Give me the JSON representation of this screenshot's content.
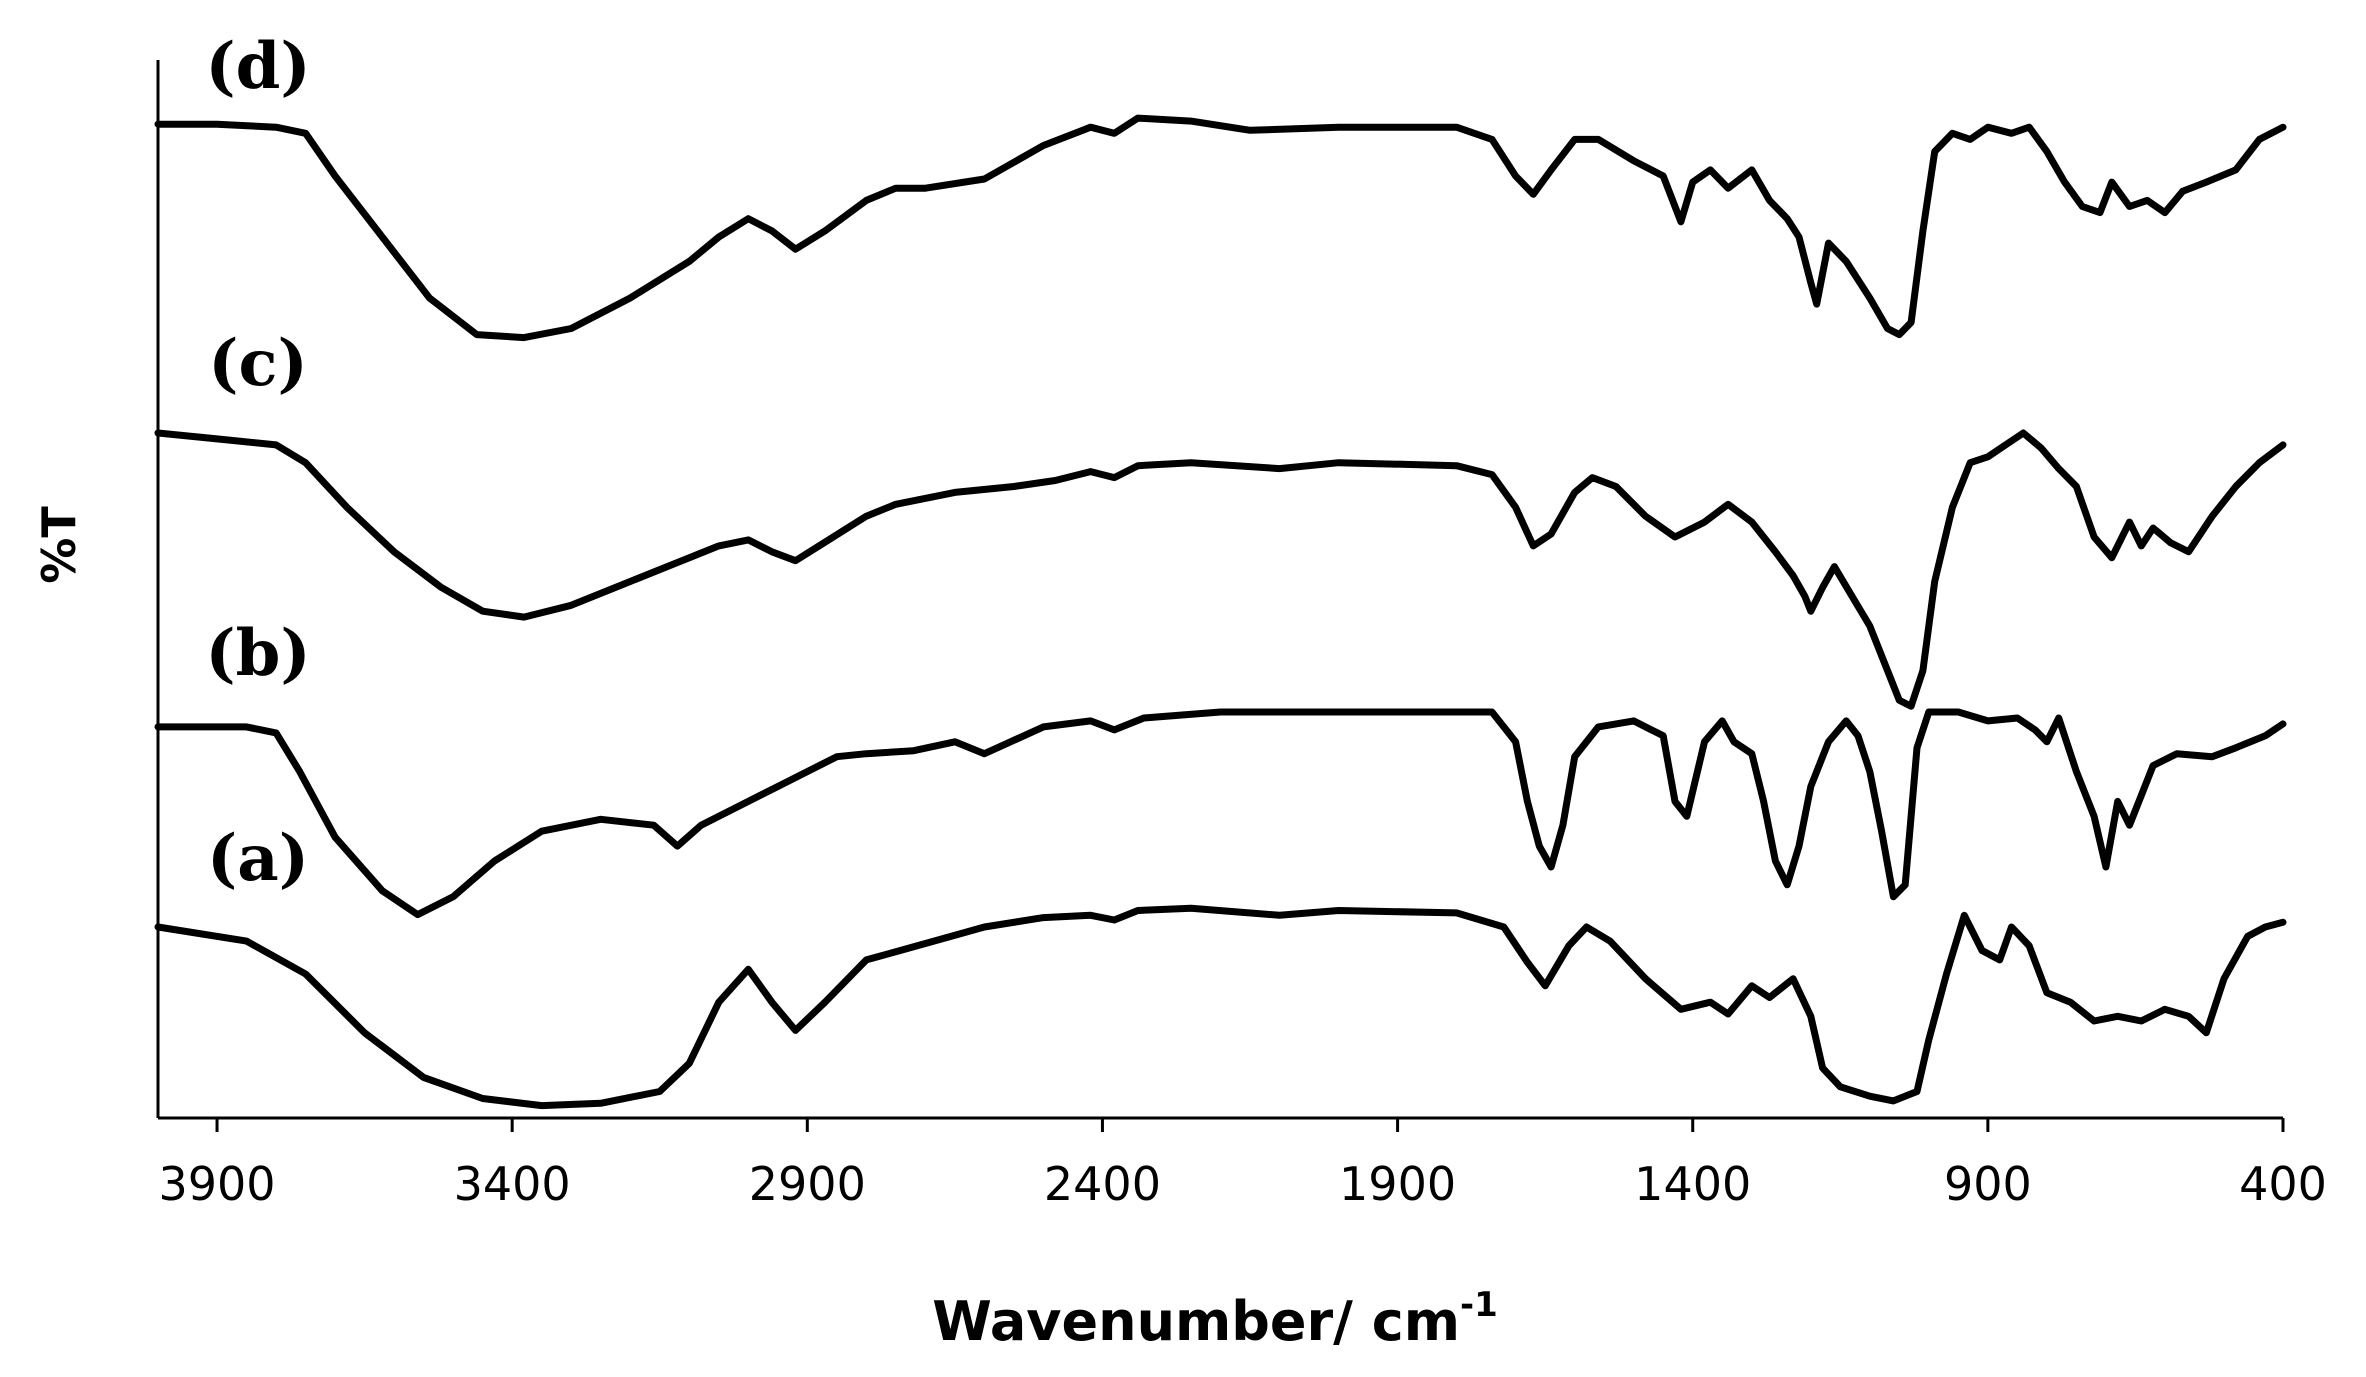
{
  "chart_data": {
    "type": "line",
    "title": "",
    "xlabel": "Wavenumber/ cm",
    "xlabel_superscript": "-1",
    "ylabel": "%T",
    "xlim": [
      4000,
      400
    ],
    "x_reversed": true,
    "ylim": [
      0,
      100
    ],
    "grid": false,
    "x_ticks": [
      3900,
      3400,
      2900,
      2400,
      1900,
      1400,
      900,
      400
    ],
    "x_tick_labels": [
      "3900",
      "3400",
      "2900",
      "2400",
      "1900",
      "1400",
      "900",
      "400"
    ],
    "series": [
      {
        "name": "(a)",
        "label": "(a)",
        "points": [
          [
            4000,
            80
          ],
          [
            3850,
            74
          ],
          [
            3750,
            60
          ],
          [
            3650,
            35
          ],
          [
            3550,
            16
          ],
          [
            3450,
            7
          ],
          [
            3350,
            4
          ],
          [
            3250,
            5
          ],
          [
            3150,
            10
          ],
          [
            3100,
            22
          ],
          [
            3050,
            48
          ],
          [
            3000,
            62
          ],
          [
            2960,
            48
          ],
          [
            2920,
            36
          ],
          [
            2870,
            48
          ],
          [
            2800,
            66
          ],
          [
            2700,
            73
          ],
          [
            2600,
            80
          ],
          [
            2500,
            84
          ],
          [
            2420,
            85
          ],
          [
            2380,
            83
          ],
          [
            2340,
            87
          ],
          [
            2250,
            88
          ],
          [
            2100,
            85
          ],
          [
            2000,
            87
          ],
          [
            1800,
            86
          ],
          [
            1720,
            80
          ],
          [
            1680,
            65
          ],
          [
            1650,
            55
          ],
          [
            1610,
            72
          ],
          [
            1580,
            80
          ],
          [
            1540,
            74
          ],
          [
            1480,
            58
          ],
          [
            1420,
            45
          ],
          [
            1370,
            48
          ],
          [
            1340,
            43
          ],
          [
            1300,
            55
          ],
          [
            1270,
            50
          ],
          [
            1230,
            58
          ],
          [
            1200,
            42
          ],
          [
            1180,
            20
          ],
          [
            1150,
            12
          ],
          [
            1100,
            8
          ],
          [
            1060,
            6
          ],
          [
            1020,
            10
          ],
          [
            1000,
            32
          ],
          [
            970,
            60
          ],
          [
            940,
            85
          ],
          [
            910,
            70
          ],
          [
            880,
            66
          ],
          [
            860,
            80
          ],
          [
            830,
            72
          ],
          [
            800,
            52
          ],
          [
            760,
            48
          ],
          [
            720,
            40
          ],
          [
            680,
            42
          ],
          [
            640,
            40
          ],
          [
            600,
            45
          ],
          [
            560,
            42
          ],
          [
            530,
            35
          ],
          [
            500,
            58
          ],
          [
            460,
            76
          ],
          [
            430,
            80
          ],
          [
            400,
            82
          ]
        ]
      },
      {
        "name": "(b)",
        "label": "(b)",
        "points": [
          [
            4000,
            95
          ],
          [
            3850,
            95
          ],
          [
            3800,
            93
          ],
          [
            3760,
            80
          ],
          [
            3700,
            58
          ],
          [
            3620,
            40
          ],
          [
            3560,
            32
          ],
          [
            3500,
            38
          ],
          [
            3430,
            50
          ],
          [
            3350,
            60
          ],
          [
            3250,
            64
          ],
          [
            3160,
            62
          ],
          [
            3120,
            55
          ],
          [
            3080,
            62
          ],
          [
            3000,
            70
          ],
          [
            2950,
            75
          ],
          [
            2850,
            85
          ],
          [
            2800,
            86
          ],
          [
            2720,
            87
          ],
          [
            2650,
            90
          ],
          [
            2600,
            86
          ],
          [
            2500,
            95
          ],
          [
            2420,
            97
          ],
          [
            2380,
            94
          ],
          [
            2330,
            98
          ],
          [
            2200,
            100
          ],
          [
            2000,
            100
          ],
          [
            1800,
            100
          ],
          [
            1740,
            100
          ],
          [
            1700,
            90
          ],
          [
            1680,
            70
          ],
          [
            1660,
            55
          ],
          [
            1640,
            48
          ],
          [
            1620,
            62
          ],
          [
            1600,
            85
          ],
          [
            1560,
            95
          ],
          [
            1500,
            97
          ],
          [
            1450,
            92
          ],
          [
            1430,
            70
          ],
          [
            1410,
            65
          ],
          [
            1380,
            90
          ],
          [
            1350,
            97
          ],
          [
            1330,
            90
          ],
          [
            1300,
            86
          ],
          [
            1280,
            70
          ],
          [
            1260,
            50
          ],
          [
            1240,
            42
          ],
          [
            1220,
            55
          ],
          [
            1200,
            75
          ],
          [
            1170,
            90
          ],
          [
            1140,
            97
          ],
          [
            1120,
            92
          ],
          [
            1100,
            80
          ],
          [
            1080,
            60
          ],
          [
            1060,
            38
          ],
          [
            1040,
            42
          ],
          [
            1020,
            88
          ],
          [
            1000,
            100
          ],
          [
            950,
            100
          ],
          [
            900,
            97
          ],
          [
            850,
            98
          ],
          [
            820,
            94
          ],
          [
            800,
            90
          ],
          [
            780,
            98
          ],
          [
            750,
            80
          ],
          [
            720,
            65
          ],
          [
            700,
            48
          ],
          [
            680,
            70
          ],
          [
            660,
            62
          ],
          [
            640,
            72
          ],
          [
            620,
            82
          ],
          [
            580,
            86
          ],
          [
            520,
            85
          ],
          [
            480,
            88
          ],
          [
            430,
            92
          ],
          [
            400,
            96
          ]
        ]
      },
      {
        "name": "(c)",
        "label": "(c)",
        "points": [
          [
            4000,
            100
          ],
          [
            3900,
            98
          ],
          [
            3800,
            96
          ],
          [
            3750,
            90
          ],
          [
            3680,
            75
          ],
          [
            3600,
            60
          ],
          [
            3520,
            48
          ],
          [
            3450,
            40
          ],
          [
            3380,
            38
          ],
          [
            3300,
            42
          ],
          [
            3200,
            50
          ],
          [
            3100,
            58
          ],
          [
            3050,
            62
          ],
          [
            3000,
            64
          ],
          [
            2960,
            60
          ],
          [
            2920,
            57
          ],
          [
            2880,
            62
          ],
          [
            2800,
            72
          ],
          [
            2750,
            76
          ],
          [
            2650,
            80
          ],
          [
            2550,
            82
          ],
          [
            2480,
            84
          ],
          [
            2420,
            87
          ],
          [
            2380,
            85
          ],
          [
            2340,
            89
          ],
          [
            2250,
            90
          ],
          [
            2100,
            88
          ],
          [
            2000,
            90
          ],
          [
            1800,
            89
          ],
          [
            1740,
            86
          ],
          [
            1700,
            75
          ],
          [
            1670,
            62
          ],
          [
            1640,
            66
          ],
          [
            1600,
            80
          ],
          [
            1570,
            85
          ],
          [
            1530,
            82
          ],
          [
            1480,
            72
          ],
          [
            1430,
            65
          ],
          [
            1380,
            70
          ],
          [
            1340,
            76
          ],
          [
            1300,
            70
          ],
          [
            1260,
            60
          ],
          [
            1230,
            52
          ],
          [
            1210,
            45
          ],
          [
            1200,
            40
          ],
          [
            1180,
            48
          ],
          [
            1160,
            55
          ],
          [
            1130,
            45
          ],
          [
            1100,
            35
          ],
          [
            1070,
            20
          ],
          [
            1050,
            10
          ],
          [
            1030,
            8
          ],
          [
            1010,
            20
          ],
          [
            990,
            50
          ],
          [
            960,
            75
          ],
          [
            930,
            90
          ],
          [
            900,
            92
          ],
          [
            870,
            96
          ],
          [
            840,
            100
          ],
          [
            810,
            95
          ],
          [
            780,
            88
          ],
          [
            750,
            82
          ],
          [
            720,
            65
          ],
          [
            690,
            58
          ],
          [
            660,
            70
          ],
          [
            640,
            62
          ],
          [
            620,
            68
          ],
          [
            590,
            63
          ],
          [
            560,
            60
          ],
          [
            520,
            72
          ],
          [
            480,
            82
          ],
          [
            440,
            90
          ],
          [
            400,
            96
          ]
        ]
      },
      {
        "name": "(d)",
        "label": "(d)",
        "points": [
          [
            4000,
            97
          ],
          [
            3900,
            97
          ],
          [
            3800,
            96
          ],
          [
            3750,
            94
          ],
          [
            3700,
            80
          ],
          [
            3620,
            60
          ],
          [
            3540,
            40
          ],
          [
            3460,
            28
          ],
          [
            3380,
            27
          ],
          [
            3300,
            30
          ],
          [
            3200,
            40
          ],
          [
            3100,
            52
          ],
          [
            3050,
            60
          ],
          [
            3000,
            66
          ],
          [
            2960,
            62
          ],
          [
            2920,
            56
          ],
          [
            2870,
            62
          ],
          [
            2800,
            72
          ],
          [
            2750,
            76
          ],
          [
            2700,
            76
          ],
          [
            2600,
            79
          ],
          [
            2500,
            90
          ],
          [
            2420,
            96
          ],
          [
            2380,
            94
          ],
          [
            2340,
            99
          ],
          [
            2250,
            98
          ],
          [
            2150,
            95
          ],
          [
            2000,
            96
          ],
          [
            1800,
            96
          ],
          [
            1740,
            92
          ],
          [
            1700,
            80
          ],
          [
            1670,
            74
          ],
          [
            1640,
            82
          ],
          [
            1600,
            92
          ],
          [
            1560,
            92
          ],
          [
            1500,
            85
          ],
          [
            1450,
            80
          ],
          [
            1420,
            65
          ],
          [
            1400,
            78
          ],
          [
            1370,
            82
          ],
          [
            1340,
            76
          ],
          [
            1300,
            82
          ],
          [
            1270,
            72
          ],
          [
            1240,
            66
          ],
          [
            1220,
            60
          ],
          [
            1200,
            45
          ],
          [
            1190,
            38
          ],
          [
            1170,
            58
          ],
          [
            1140,
            52
          ],
          [
            1100,
            40
          ],
          [
            1070,
            30
          ],
          [
            1050,
            28
          ],
          [
            1030,
            32
          ],
          [
            1010,
            62
          ],
          [
            990,
            88
          ],
          [
            960,
            94
          ],
          [
            930,
            92
          ],
          [
            900,
            96
          ],
          [
            860,
            94
          ],
          [
            830,
            96
          ],
          [
            800,
            88
          ],
          [
            770,
            78
          ],
          [
            740,
            70
          ],
          [
            710,
            68
          ],
          [
            690,
            78
          ],
          [
            660,
            70
          ],
          [
            630,
            72
          ],
          [
            600,
            68
          ],
          [
            570,
            75
          ],
          [
            530,
            78
          ],
          [
            480,
            82
          ],
          [
            440,
            92
          ],
          [
            400,
            96
          ]
        ]
      }
    ]
  }
}
